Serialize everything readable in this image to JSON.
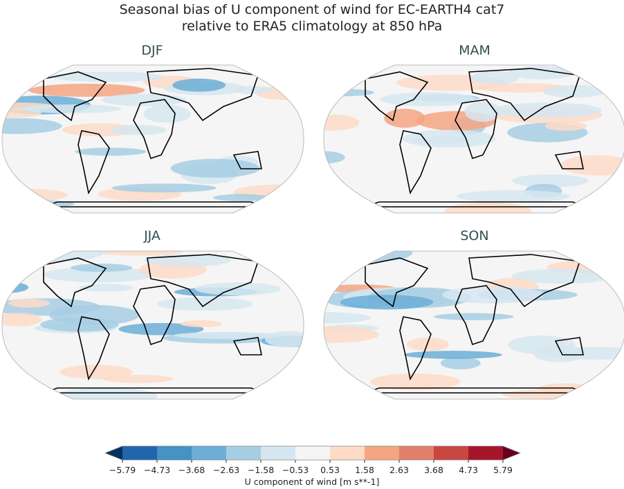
{
  "title_line1": "Seasonal bias of U component of wind for EC-EARTH4 cat7",
  "title_line2": "relative to ERA5 climatology at 850 hPa",
  "panels": [
    {
      "label": "DJF"
    },
    {
      "label": "MAM"
    },
    {
      "label": "JJA"
    },
    {
      "label": "SON"
    }
  ],
  "colorbar": {
    "label": "U component of wind [m s**-1]",
    "ticks": [
      "−5.79",
      "−4.73",
      "−3.68",
      "−2.63",
      "−1.58",
      "−0.53",
      "0.53",
      "1.58",
      "2.63",
      "3.68",
      "4.73",
      "5.79"
    ],
    "colors": [
      "#053061",
      "#2166ac",
      "#4393c3",
      "#6baed6",
      "#a6cee3",
      "#d6e6f0",
      "#f5f5f5",
      "#fddbc7",
      "#f4a582",
      "#e0806a",
      "#c94741",
      "#a6162b",
      "#67001f"
    ],
    "extend": "both"
  }
}
